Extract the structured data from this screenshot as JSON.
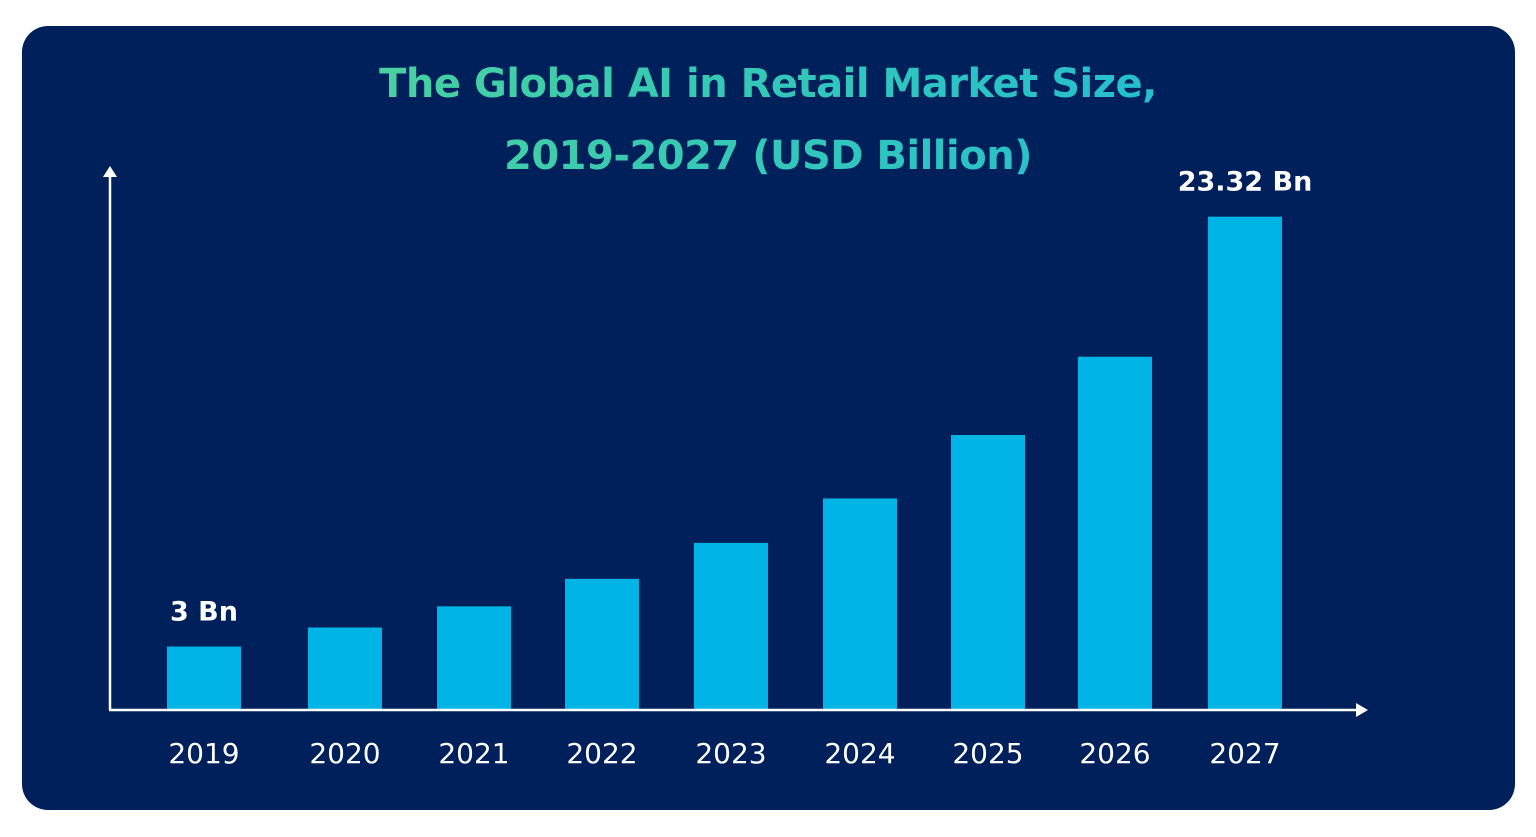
{
  "colors": {
    "background": "#00205b",
    "bar": "#00b5e6",
    "axis": "#ffffff",
    "title_gradient_start": "#5fd98a",
    "title_gradient_end": "#18b6e6"
  },
  "chart_data": {
    "type": "bar",
    "title_line1": "The Global AI in Retail Market Size,",
    "title_line2": "2019-2027 (USD Billion)",
    "xlabel": "",
    "ylabel": "",
    "categories": [
      "2019",
      "2020",
      "2021",
      "2022",
      "2023",
      "2024",
      "2025",
      "2026",
      "2027"
    ],
    "values": [
      3,
      3.9,
      4.9,
      6.2,
      7.9,
      10.0,
      13.0,
      16.7,
      23.32
    ],
    "ylim": [
      0,
      26
    ],
    "grid": false,
    "data_labels": [
      {
        "category": "2019",
        "text": "3 Bn"
      },
      {
        "category": "2027",
        "text": "23.32 Bn"
      }
    ]
  }
}
